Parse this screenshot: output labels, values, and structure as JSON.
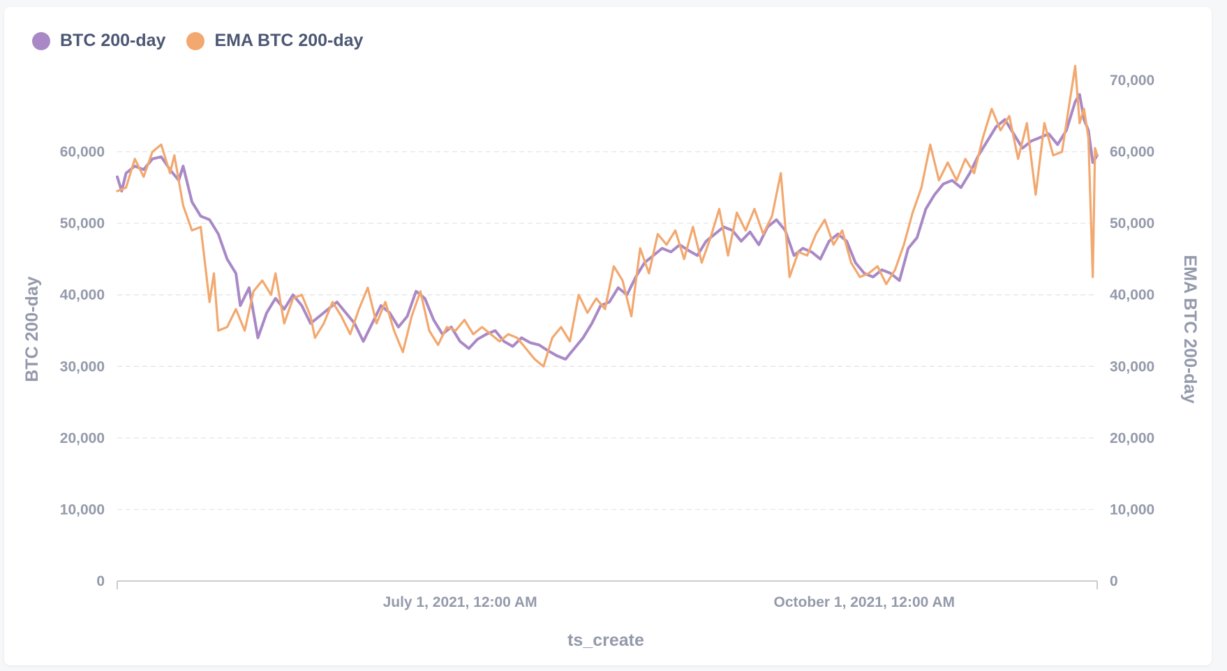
{
  "colors": {
    "series_btc": "#a989c5",
    "series_ema": "#f2a86f",
    "grid": "#e3e4e8",
    "axis": "#b8bbc3",
    "text": "#949aab"
  },
  "legend": [
    {
      "label": "BTC 200-day",
      "color": "#a989c5"
    },
    {
      "label": "EMA BTC 200-day",
      "color": "#f2a86f"
    }
  ],
  "chart_data": {
    "type": "line",
    "xlabel": "ts_create",
    "ylabel_left": "BTC 200-day",
    "ylabel_right": "EMA BTC 200-day",
    "xlim": [
      "2021-04-14",
      "2021-11-23"
    ],
    "x_ticks": [
      {
        "date": "2021-07-01",
        "label": "July 1, 2021, 12:00 AM"
      },
      {
        "date": "2021-10-01",
        "label": "October 1, 2021, 12:00 AM"
      }
    ],
    "y_left": {
      "min": 0,
      "max": 70000,
      "ticks": [
        0,
        10000,
        20000,
        30000,
        40000,
        50000,
        60000
      ],
      "tick_labels": [
        "0",
        "10,000",
        "20,000",
        "30,000",
        "40,000",
        "50,000",
        "60,000"
      ]
    },
    "y_right": {
      "min": 0,
      "max": 70000,
      "ticks": [
        0,
        10000,
        20000,
        30000,
        40000,
        50000,
        60000,
        70000
      ],
      "tick_labels": [
        "0",
        "10,000",
        "20,000",
        "30,000",
        "40,000",
        "50,000",
        "60,000",
        "70,000"
      ]
    },
    "grid": "horizontal dashed",
    "legend_position": "top-left",
    "series": [
      {
        "name": "BTC 200-day",
        "axis": "left",
        "points": [
          [
            "2021-04-14",
            56500
          ],
          [
            "2021-04-15",
            54500
          ],
          [
            "2021-04-16",
            57000
          ],
          [
            "2021-04-18",
            58000
          ],
          [
            "2021-04-20",
            57500
          ],
          [
            "2021-04-22",
            59000
          ],
          [
            "2021-04-24",
            59300
          ],
          [
            "2021-04-26",
            57500
          ],
          [
            "2021-04-28",
            56000
          ],
          [
            "2021-04-29",
            58000
          ],
          [
            "2021-05-01",
            53000
          ],
          [
            "2021-05-03",
            51000
          ],
          [
            "2021-05-05",
            50500
          ],
          [
            "2021-05-07",
            48500
          ],
          [
            "2021-05-09",
            45000
          ],
          [
            "2021-05-11",
            43000
          ],
          [
            "2021-05-12",
            38500
          ],
          [
            "2021-05-14",
            41000
          ],
          [
            "2021-05-16",
            34000
          ],
          [
            "2021-05-18",
            37500
          ],
          [
            "2021-05-20",
            39500
          ],
          [
            "2021-05-22",
            38000
          ],
          [
            "2021-05-24",
            40000
          ],
          [
            "2021-05-26",
            38500
          ],
          [
            "2021-05-28",
            36000
          ],
          [
            "2021-05-30",
            37000
          ],
          [
            "2021-06-01",
            38000
          ],
          [
            "2021-06-03",
            39000
          ],
          [
            "2021-06-05",
            37500
          ],
          [
            "2021-06-07",
            36000
          ],
          [
            "2021-06-09",
            33500
          ],
          [
            "2021-06-11",
            36000
          ],
          [
            "2021-06-13",
            38500
          ],
          [
            "2021-06-15",
            37500
          ],
          [
            "2021-06-17",
            35500
          ],
          [
            "2021-06-19",
            37000
          ],
          [
            "2021-06-21",
            40500
          ],
          [
            "2021-06-23",
            39500
          ],
          [
            "2021-06-25",
            36500
          ],
          [
            "2021-06-27",
            34500
          ],
          [
            "2021-06-29",
            35500
          ],
          [
            "2021-07-01",
            33500
          ],
          [
            "2021-07-03",
            32500
          ],
          [
            "2021-07-05",
            33800
          ],
          [
            "2021-07-07",
            34500
          ],
          [
            "2021-07-09",
            35000
          ],
          [
            "2021-07-11",
            33500
          ],
          [
            "2021-07-13",
            32800
          ],
          [
            "2021-07-15",
            34000
          ],
          [
            "2021-07-17",
            33300
          ],
          [
            "2021-07-19",
            33000
          ],
          [
            "2021-07-21",
            32200
          ],
          [
            "2021-07-23",
            31500
          ],
          [
            "2021-07-25",
            31000
          ],
          [
            "2021-07-27",
            32500
          ],
          [
            "2021-07-29",
            34000
          ],
          [
            "2021-07-31",
            36000
          ],
          [
            "2021-08-02",
            38500
          ],
          [
            "2021-08-04",
            39000
          ],
          [
            "2021-08-06",
            41000
          ],
          [
            "2021-08-08",
            40000
          ],
          [
            "2021-08-10",
            42500
          ],
          [
            "2021-08-12",
            44500
          ],
          [
            "2021-08-14",
            45500
          ],
          [
            "2021-08-16",
            46500
          ],
          [
            "2021-08-18",
            46000
          ],
          [
            "2021-08-20",
            47000
          ],
          [
            "2021-08-22",
            46200
          ],
          [
            "2021-08-24",
            45500
          ],
          [
            "2021-08-26",
            47500
          ],
          [
            "2021-08-28",
            48500
          ],
          [
            "2021-08-30",
            49500
          ],
          [
            "2021-09-01",
            49000
          ],
          [
            "2021-09-03",
            47500
          ],
          [
            "2021-09-05",
            48800
          ],
          [
            "2021-09-07",
            47000
          ],
          [
            "2021-09-09",
            49500
          ],
          [
            "2021-09-11",
            50500
          ],
          [
            "2021-09-13",
            49000
          ],
          [
            "2021-09-15",
            45500
          ],
          [
            "2021-09-17",
            46500
          ],
          [
            "2021-09-19",
            46000
          ],
          [
            "2021-09-21",
            45000
          ],
          [
            "2021-09-23",
            47500
          ],
          [
            "2021-09-25",
            48500
          ],
          [
            "2021-09-27",
            47500
          ],
          [
            "2021-09-29",
            44500
          ],
          [
            "2021-10-01",
            43000
          ],
          [
            "2021-10-03",
            42500
          ],
          [
            "2021-10-05",
            43500
          ],
          [
            "2021-10-07",
            43000
          ],
          [
            "2021-10-09",
            42000
          ],
          [
            "2021-10-11",
            46500
          ],
          [
            "2021-10-13",
            48000
          ],
          [
            "2021-10-15",
            52000
          ],
          [
            "2021-10-17",
            54000
          ],
          [
            "2021-10-19",
            55500
          ],
          [
            "2021-10-21",
            56000
          ],
          [
            "2021-10-23",
            55000
          ],
          [
            "2021-10-25",
            57000
          ],
          [
            "2021-10-27",
            59500
          ],
          [
            "2021-10-29",
            61500
          ],
          [
            "2021-10-31",
            63500
          ],
          [
            "2021-11-02",
            64500
          ],
          [
            "2021-11-04",
            62500
          ],
          [
            "2021-11-06",
            60500
          ],
          [
            "2021-11-08",
            61500
          ],
          [
            "2021-11-10",
            62000
          ],
          [
            "2021-11-12",
            62500
          ],
          [
            "2021-11-14",
            61000
          ],
          [
            "2021-11-16",
            63000
          ],
          [
            "2021-11-18",
            67000
          ],
          [
            "2021-11-19",
            68000
          ],
          [
            "2021-11-20",
            64500
          ],
          [
            "2021-11-21",
            63000
          ],
          [
            "2021-11-22",
            58500
          ],
          [
            "2021-11-23",
            59500
          ]
        ]
      },
      {
        "name": "EMA BTC 200-day",
        "axis": "right",
        "points": [
          [
            "2021-04-14",
            54500
          ],
          [
            "2021-04-16",
            55000
          ],
          [
            "2021-04-18",
            59000
          ],
          [
            "2021-04-20",
            56500
          ],
          [
            "2021-04-22",
            60000
          ],
          [
            "2021-04-24",
            61000
          ],
          [
            "2021-04-26",
            57000
          ],
          [
            "2021-04-27",
            59500
          ],
          [
            "2021-04-29",
            52500
          ],
          [
            "2021-05-01",
            49000
          ],
          [
            "2021-05-03",
            49500
          ],
          [
            "2021-05-05",
            39000
          ],
          [
            "2021-05-06",
            43000
          ],
          [
            "2021-05-07",
            35000
          ],
          [
            "2021-05-09",
            35500
          ],
          [
            "2021-05-11",
            38000
          ],
          [
            "2021-05-13",
            35000
          ],
          [
            "2021-05-15",
            40500
          ],
          [
            "2021-05-17",
            42000
          ],
          [
            "2021-05-19",
            40000
          ],
          [
            "2021-05-20",
            43000
          ],
          [
            "2021-05-22",
            36000
          ],
          [
            "2021-05-24",
            39500
          ],
          [
            "2021-05-26",
            40000
          ],
          [
            "2021-05-28",
            37000
          ],
          [
            "2021-05-29",
            34000
          ],
          [
            "2021-05-31",
            36000
          ],
          [
            "2021-06-02",
            39000
          ],
          [
            "2021-06-04",
            37000
          ],
          [
            "2021-06-06",
            34500
          ],
          [
            "2021-06-08",
            38000
          ],
          [
            "2021-06-10",
            41000
          ],
          [
            "2021-06-12",
            36000
          ],
          [
            "2021-06-14",
            39000
          ],
          [
            "2021-06-16",
            35000
          ],
          [
            "2021-06-18",
            32000
          ],
          [
            "2021-06-20",
            37000
          ],
          [
            "2021-06-22",
            40500
          ],
          [
            "2021-06-24",
            35000
          ],
          [
            "2021-06-26",
            33000
          ],
          [
            "2021-06-28",
            35500
          ],
          [
            "2021-06-30",
            35000
          ],
          [
            "2021-07-02",
            36500
          ],
          [
            "2021-07-04",
            34500
          ],
          [
            "2021-07-06",
            35500
          ],
          [
            "2021-07-08",
            34500
          ],
          [
            "2021-07-10",
            33500
          ],
          [
            "2021-07-12",
            34500
          ],
          [
            "2021-07-14",
            34000
          ],
          [
            "2021-07-16",
            32500
          ],
          [
            "2021-07-18",
            31000
          ],
          [
            "2021-07-20",
            30000
          ],
          [
            "2021-07-22",
            34000
          ],
          [
            "2021-07-24",
            35500
          ],
          [
            "2021-07-26",
            33500
          ],
          [
            "2021-07-28",
            40000
          ],
          [
            "2021-07-30",
            37500
          ],
          [
            "2021-08-01",
            39500
          ],
          [
            "2021-08-03",
            38000
          ],
          [
            "2021-08-05",
            44000
          ],
          [
            "2021-08-07",
            42000
          ],
          [
            "2021-08-09",
            37000
          ],
          [
            "2021-08-11",
            46500
          ],
          [
            "2021-08-13",
            43000
          ],
          [
            "2021-08-15",
            48500
          ],
          [
            "2021-08-17",
            47000
          ],
          [
            "2021-08-19",
            49000
          ],
          [
            "2021-08-21",
            45000
          ],
          [
            "2021-08-23",
            49500
          ],
          [
            "2021-08-25",
            44500
          ],
          [
            "2021-08-27",
            48000
          ],
          [
            "2021-08-29",
            52000
          ],
          [
            "2021-08-31",
            45500
          ],
          [
            "2021-09-02",
            51500
          ],
          [
            "2021-09-04",
            49000
          ],
          [
            "2021-09-06",
            52000
          ],
          [
            "2021-09-08",
            48500
          ],
          [
            "2021-09-10",
            51000
          ],
          [
            "2021-09-12",
            57000
          ],
          [
            "2021-09-14",
            42500
          ],
          [
            "2021-09-16",
            46000
          ],
          [
            "2021-09-18",
            45500
          ],
          [
            "2021-09-20",
            48500
          ],
          [
            "2021-09-22",
            50500
          ],
          [
            "2021-09-24",
            47000
          ],
          [
            "2021-09-26",
            49000
          ],
          [
            "2021-09-28",
            44500
          ],
          [
            "2021-09-30",
            42500
          ],
          [
            "2021-10-02",
            43000
          ],
          [
            "2021-10-04",
            44000
          ],
          [
            "2021-10-06",
            41500
          ],
          [
            "2021-10-08",
            43500
          ],
          [
            "2021-10-10",
            47000
          ],
          [
            "2021-10-12",
            51500
          ],
          [
            "2021-10-14",
            55000
          ],
          [
            "2021-10-16",
            61000
          ],
          [
            "2021-10-18",
            56000
          ],
          [
            "2021-10-20",
            58500
          ],
          [
            "2021-10-22",
            56000
          ],
          [
            "2021-10-24",
            59000
          ],
          [
            "2021-10-26",
            57000
          ],
          [
            "2021-10-28",
            62000
          ],
          [
            "2021-10-30",
            66000
          ],
          [
            "2021-11-01",
            63000
          ],
          [
            "2021-11-03",
            65000
          ],
          [
            "2021-11-05",
            59000
          ],
          [
            "2021-11-07",
            64000
          ],
          [
            "2021-11-09",
            54000
          ],
          [
            "2021-11-11",
            64000
          ],
          [
            "2021-11-13",
            59500
          ],
          [
            "2021-11-15",
            60000
          ],
          [
            "2021-11-17",
            68000
          ],
          [
            "2021-11-18",
            72000
          ],
          [
            "2021-11-19",
            64000
          ],
          [
            "2021-11-20",
            66000
          ],
          [
            "2021-11-21",
            62000
          ],
          [
            "2021-11-22",
            42500
          ],
          [
            "2021-11-22T12",
            60500
          ],
          [
            "2021-11-23",
            59500
          ]
        ]
      }
    ]
  }
}
